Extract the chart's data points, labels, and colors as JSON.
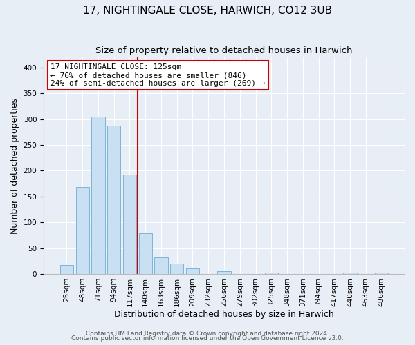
{
  "title": "17, NIGHTINGALE CLOSE, HARWICH, CO12 3UB",
  "subtitle": "Size of property relative to detached houses in Harwich",
  "xlabel": "Distribution of detached houses by size in Harwich",
  "ylabel": "Number of detached properties",
  "bin_labels": [
    "25sqm",
    "48sqm",
    "71sqm",
    "94sqm",
    "117sqm",
    "140sqm",
    "163sqm",
    "186sqm",
    "209sqm",
    "232sqm",
    "256sqm",
    "279sqm",
    "302sqm",
    "325sqm",
    "348sqm",
    "371sqm",
    "394sqm",
    "417sqm",
    "440sqm",
    "463sqm",
    "486sqm"
  ],
  "bar_values": [
    17,
    169,
    305,
    288,
    192,
    79,
    32,
    20,
    11,
    0,
    5,
    0,
    0,
    3,
    0,
    0,
    0,
    0,
    2,
    0,
    2
  ],
  "bar_color": "#c9dff2",
  "bar_edge_color": "#7cb4d8",
  "vline_color": "#cc0000",
  "annotation_text": "17 NIGHTINGALE CLOSE: 125sqm\n← 76% of detached houses are smaller (846)\n24% of semi-detached houses are larger (269) →",
  "annotation_box_color": "#ffffff",
  "annotation_box_edge": "#cc0000",
  "ylim": [
    0,
    420
  ],
  "yticks": [
    0,
    50,
    100,
    150,
    200,
    250,
    300,
    350,
    400
  ],
  "footer_line1": "Contains HM Land Registry data © Crown copyright and database right 2024.",
  "footer_line2": "Contains public sector information licensed under the Open Government Licence v3.0.",
  "background_color": "#e8eef5",
  "title_fontsize": 11,
  "subtitle_fontsize": 9.5,
  "tick_fontsize": 7.5,
  "label_fontsize": 9,
  "annotation_fontsize": 8,
  "footer_fontsize": 6.5
}
